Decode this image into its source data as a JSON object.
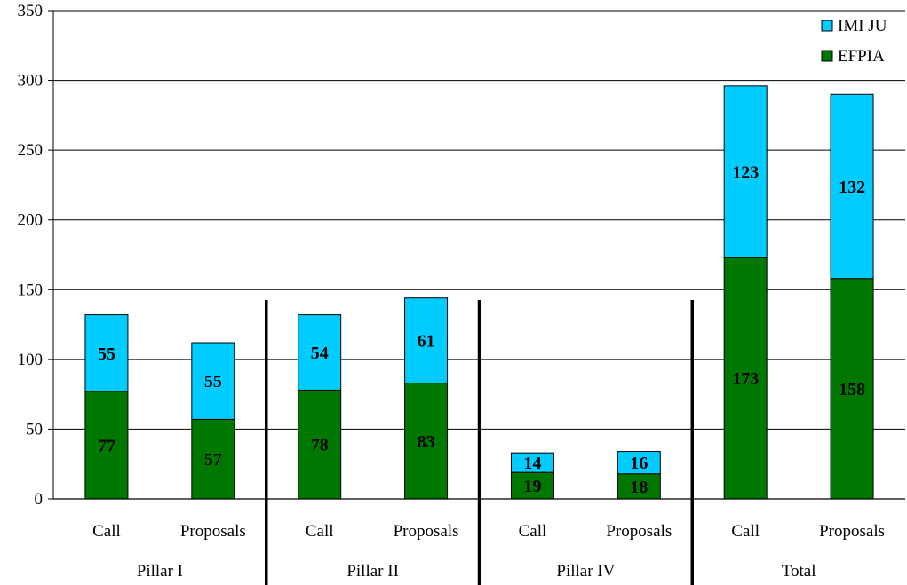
{
  "chart_data": {
    "type": "bar",
    "stacked": true,
    "categories": [
      "Call",
      "Proposals",
      "Call",
      "Proposals",
      "Call",
      "Proposals",
      "Call",
      "Proposals"
    ],
    "groups": [
      {
        "label": "Pillar I",
        "categories": [
          "Call",
          "Proposals"
        ]
      },
      {
        "label": "Pillar II",
        "categories": [
          "Call",
          "Proposals"
        ]
      },
      {
        "label": "Pillar IV",
        "categories": [
          "Call",
          "Proposals"
        ]
      },
      {
        "label": "Total",
        "categories": [
          "Call",
          "Proposals"
        ]
      }
    ],
    "series": [
      {
        "name": "EFPIA",
        "color": "#007700",
        "values": [
          77,
          57,
          78,
          83,
          19,
          18,
          173,
          158
        ]
      },
      {
        "name": "IMI JU",
        "color": "#00ccff",
        "values": [
          55,
          55,
          54,
          61,
          14,
          16,
          123,
          132
        ]
      }
    ],
    "ylim": [
      0,
      350
    ],
    "yticks": [
      0,
      50,
      100,
      150,
      200,
      250,
      300,
      350
    ],
    "grid": true,
    "legend": "top-right"
  }
}
